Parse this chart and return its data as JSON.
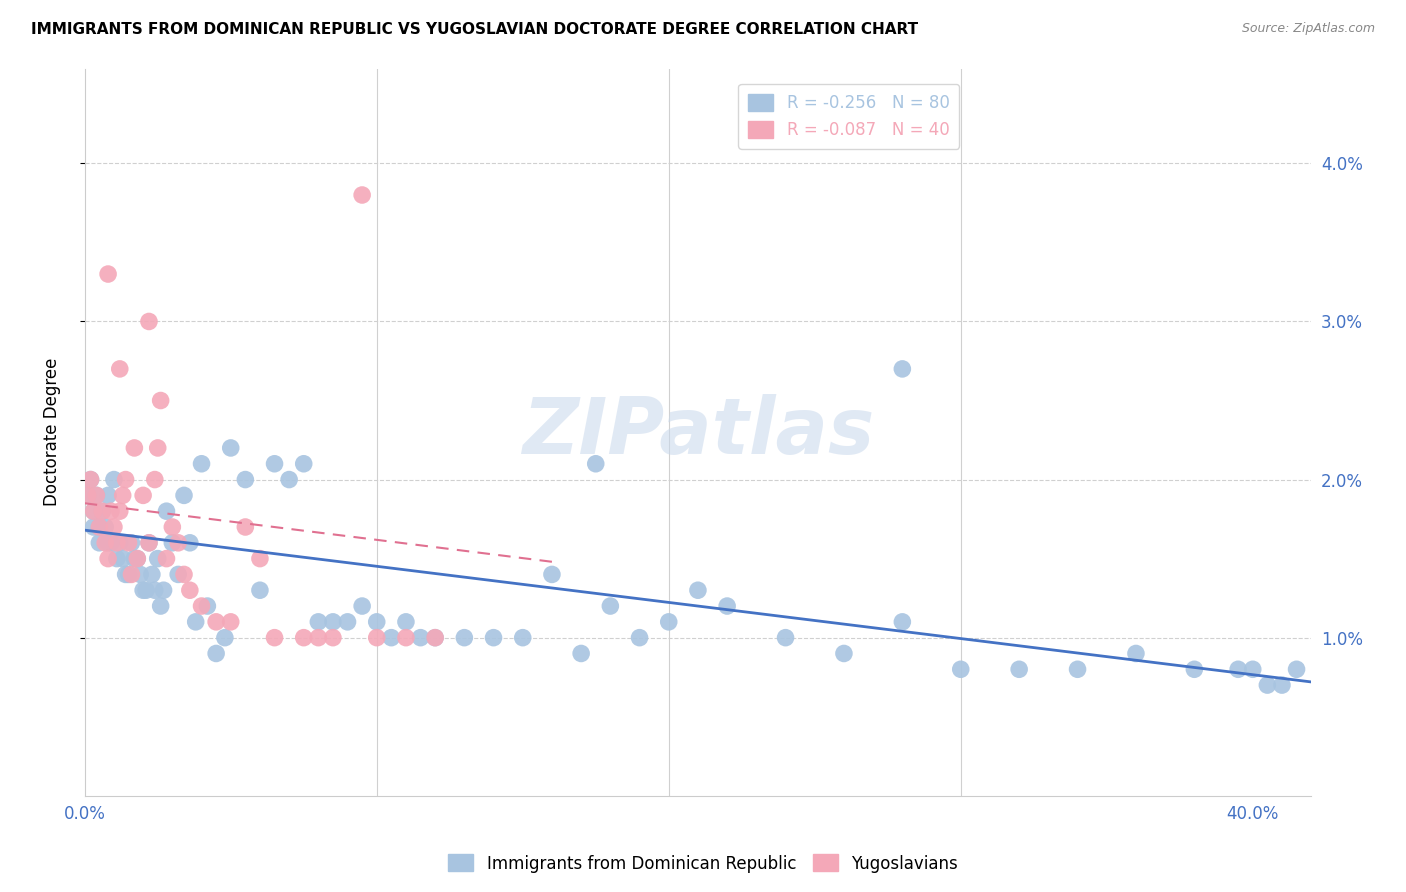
{
  "title": "IMMIGRANTS FROM DOMINICAN REPUBLIC VS YUGOSLAVIAN DOCTORATE DEGREE CORRELATION CHART",
  "source": "Source: ZipAtlas.com",
  "ylabel": "Doctorate Degree",
  "ylabel_ticks": [
    "4.0%",
    "3.0%",
    "2.0%",
    "1.0%"
  ],
  "ytick_vals": [
    0.04,
    0.03,
    0.02,
    0.01
  ],
  "xlim": [
    0.0,
    0.42
  ],
  "ylim": [
    0.0,
    0.046
  ],
  "legend_entries": [
    {
      "label": "R = -0.256   N = 80",
      "color": "#a8c4e0"
    },
    {
      "label": "R = -0.087   N = 40",
      "color": "#f4a8b8"
    }
  ],
  "blue_color": "#a8c4e0",
  "pink_color": "#f4a8b8",
  "blue_line_color": "#4472c4",
  "pink_line_color": "#e07090",
  "watermark": "ZIPatlas",
  "title_fontsize": 11,
  "axis_color": "#4472c4",
  "grid_color": "#d0d0d0",
  "blue_scatter_x": [
    0.001,
    0.002,
    0.003,
    0.003,
    0.004,
    0.005,
    0.005,
    0.006,
    0.007,
    0.008,
    0.008,
    0.009,
    0.01,
    0.011,
    0.012,
    0.013,
    0.014,
    0.015,
    0.016,
    0.017,
    0.018,
    0.019,
    0.02,
    0.021,
    0.022,
    0.023,
    0.024,
    0.025,
    0.026,
    0.027,
    0.028,
    0.03,
    0.032,
    0.034,
    0.036,
    0.038,
    0.04,
    0.042,
    0.045,
    0.048,
    0.05,
    0.055,
    0.06,
    0.065,
    0.07,
    0.075,
    0.08,
    0.085,
    0.09,
    0.095,
    0.1,
    0.105,
    0.11,
    0.115,
    0.12,
    0.13,
    0.14,
    0.15,
    0.16,
    0.17,
    0.175,
    0.18,
    0.19,
    0.2,
    0.21,
    0.22,
    0.24,
    0.26,
    0.28,
    0.3,
    0.32,
    0.34,
    0.36,
    0.38,
    0.395,
    0.4,
    0.405,
    0.41,
    0.415,
    0.28
  ],
  "blue_scatter_y": [
    0.019,
    0.02,
    0.018,
    0.017,
    0.019,
    0.017,
    0.016,
    0.018,
    0.017,
    0.016,
    0.019,
    0.016,
    0.02,
    0.015,
    0.016,
    0.015,
    0.014,
    0.014,
    0.016,
    0.015,
    0.015,
    0.014,
    0.013,
    0.013,
    0.016,
    0.014,
    0.013,
    0.015,
    0.012,
    0.013,
    0.018,
    0.016,
    0.014,
    0.019,
    0.016,
    0.011,
    0.021,
    0.012,
    0.009,
    0.01,
    0.022,
    0.02,
    0.013,
    0.021,
    0.02,
    0.021,
    0.011,
    0.011,
    0.011,
    0.012,
    0.011,
    0.01,
    0.011,
    0.01,
    0.01,
    0.01,
    0.01,
    0.01,
    0.014,
    0.009,
    0.021,
    0.012,
    0.01,
    0.011,
    0.013,
    0.012,
    0.01,
    0.009,
    0.011,
    0.008,
    0.008,
    0.008,
    0.009,
    0.008,
    0.008,
    0.008,
    0.007,
    0.007,
    0.008,
    0.027
  ],
  "pink_scatter_x": [
    0.001,
    0.002,
    0.003,
    0.004,
    0.005,
    0.006,
    0.007,
    0.008,
    0.009,
    0.01,
    0.011,
    0.012,
    0.013,
    0.014,
    0.015,
    0.016,
    0.017,
    0.018,
    0.02,
    0.022,
    0.024,
    0.026,
    0.028,
    0.03,
    0.032,
    0.034,
    0.036,
    0.04,
    0.045,
    0.05,
    0.055,
    0.06,
    0.065,
    0.075,
    0.08,
    0.085,
    0.095,
    0.1,
    0.11,
    0.12
  ],
  "pink_scatter_y": [
    0.019,
    0.02,
    0.018,
    0.019,
    0.017,
    0.018,
    0.016,
    0.015,
    0.018,
    0.017,
    0.016,
    0.018,
    0.019,
    0.02,
    0.016,
    0.014,
    0.022,
    0.015,
    0.019,
    0.016,
    0.02,
    0.025,
    0.015,
    0.017,
    0.016,
    0.014,
    0.013,
    0.012,
    0.011,
    0.011,
    0.017,
    0.015,
    0.01,
    0.01,
    0.01,
    0.01,
    0.038,
    0.01,
    0.01,
    0.01
  ],
  "blue_trendline_x": [
    0.0,
    0.42
  ],
  "blue_trendline_y": [
    0.0168,
    0.0072
  ],
  "pink_trendline_x": [
    0.0,
    0.16
  ],
  "pink_trendline_y": [
    0.0185,
    0.0148
  ],
  "pink_special_points_x": [
    0.022,
    0.008,
    0.012,
    0.025
  ],
  "pink_special_points_y": [
    0.03,
    0.033,
    0.027,
    0.022
  ]
}
